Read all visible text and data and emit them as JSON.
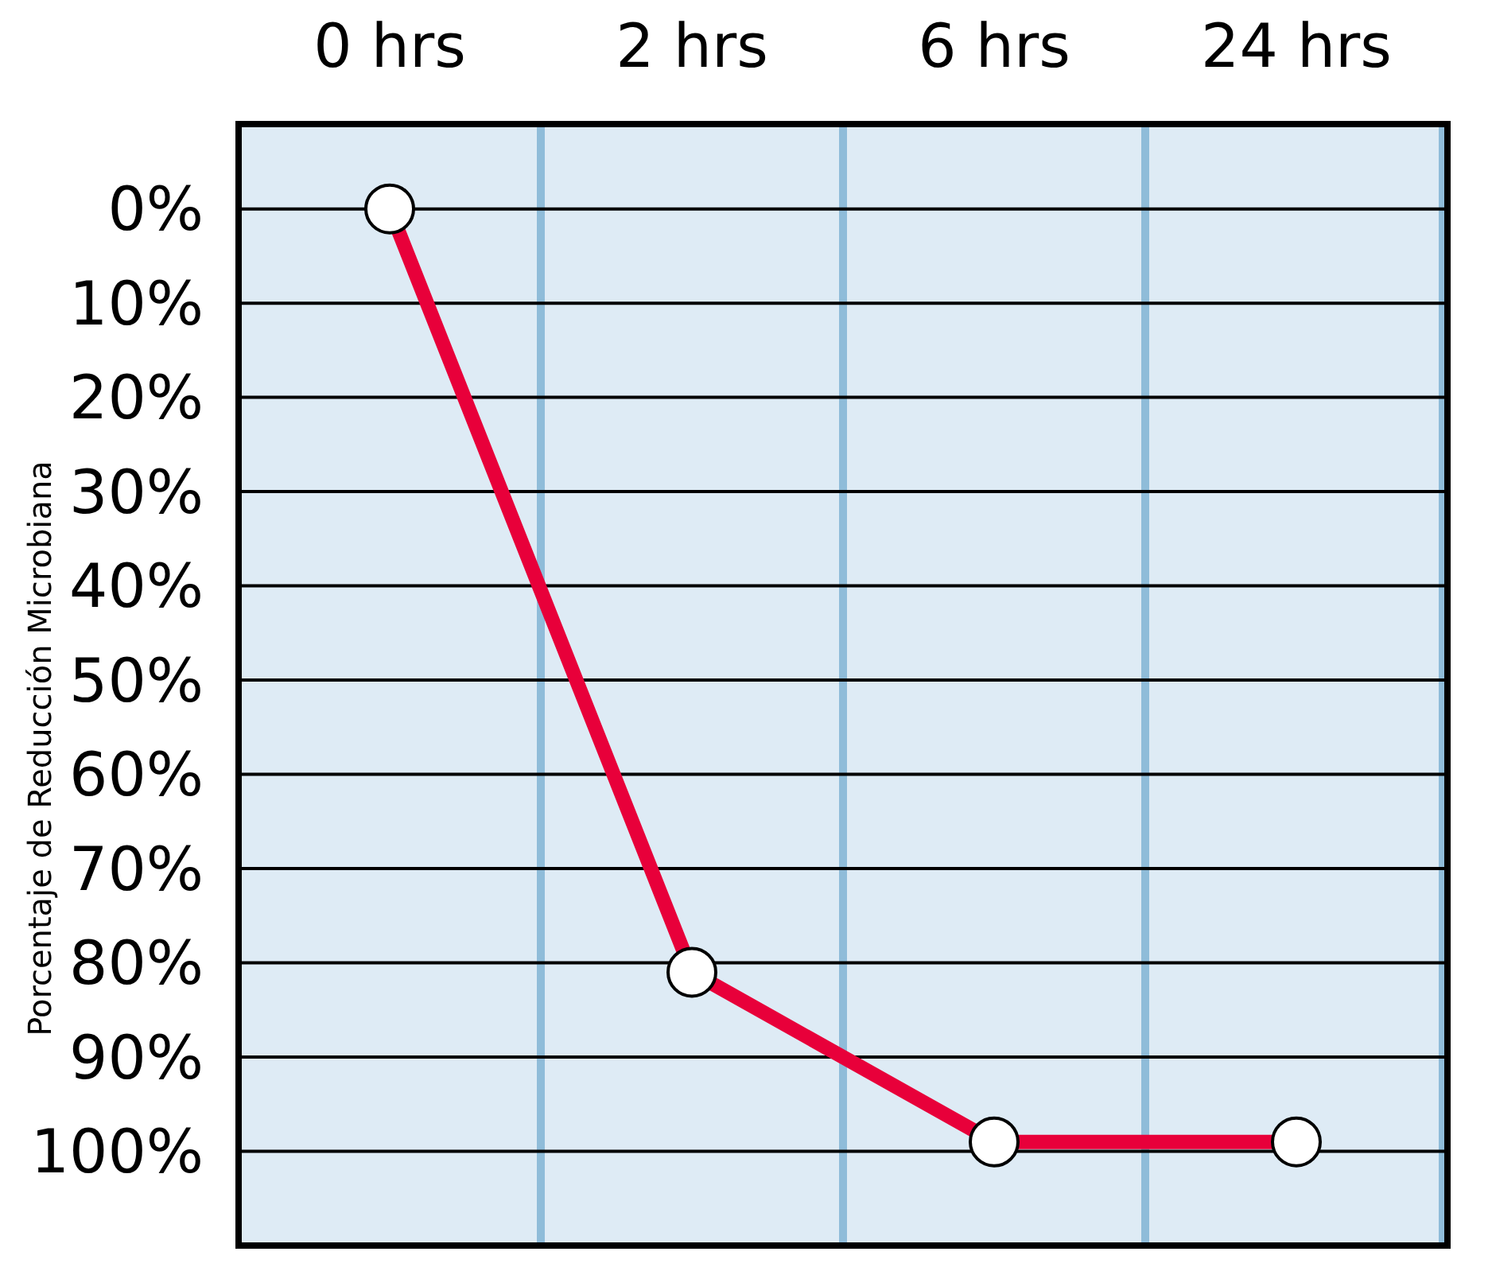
{
  "chart_data": {
    "type": "line",
    "ylabel": "Porcentaje de Reducción Microbiana",
    "categories": [
      "0 hrs",
      "2 hrs",
      "6 hrs",
      "24 hrs"
    ],
    "series": [
      {
        "color": "#e8003a",
        "values": [
          0,
          81,
          99,
          99
        ]
      }
    ],
    "ylim": [
      110,
      -9
    ],
    "yticks": [
      {
        "value": 0,
        "label": "0%"
      },
      {
        "value": 10,
        "label": "10%"
      },
      {
        "value": 20,
        "label": "20%"
      },
      {
        "value": 30,
        "label": "30%"
      },
      {
        "value": 40,
        "label": "40%"
      },
      {
        "value": 50,
        "label": "50%"
      },
      {
        "value": 60,
        "label": "60%"
      },
      {
        "value": 70,
        "label": "70%"
      },
      {
        "value": 80,
        "label": "80%"
      },
      {
        "value": 90,
        "label": "90%"
      },
      {
        "value": 100,
        "label": "100%"
      }
    ],
    "grid": true,
    "marker": "circle",
    "line_style": "solid"
  }
}
